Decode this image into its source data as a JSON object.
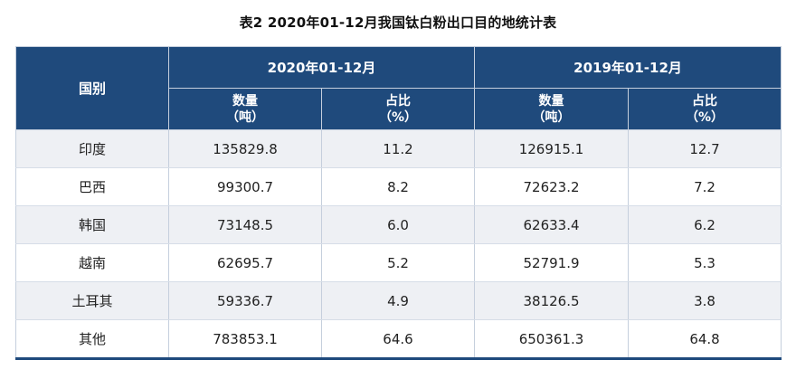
{
  "caption": "表2  2020年01-12月我国钛白粉出口目的地统计表",
  "header": {
    "country": "国别",
    "period_2020": "2020年01-12月",
    "period_2019": "2019年01-12月",
    "qty_label": "数量",
    "qty_unit": "（吨）",
    "share_label": "占比",
    "share_unit": "（%）"
  },
  "rows": [
    {
      "country": "印度",
      "qty_2020": "135829.8",
      "share_2020": "11.2",
      "qty_2019": "126915.1",
      "share_2019": "12.7"
    },
    {
      "country": "巴西",
      "qty_2020": "99300.7",
      "share_2020": "8.2",
      "qty_2019": "72623.2",
      "share_2019": "7.2"
    },
    {
      "country": "韩国",
      "qty_2020": "73148.5",
      "share_2020": "6.0",
      "qty_2019": "62633.4",
      "share_2019": "6.2"
    },
    {
      "country": "越南",
      "qty_2020": "62695.7",
      "share_2020": "5.2",
      "qty_2019": "52791.9",
      "share_2019": "5.3"
    },
    {
      "country": "土耳其",
      "qty_2020": "59336.7",
      "share_2020": "4.9",
      "qty_2019": "38126.5",
      "share_2019": "3.8"
    },
    {
      "country": "其他",
      "qty_2020": "783853.1",
      "share_2020": "64.6",
      "qty_2019": "650361.3",
      "share_2019": "64.8"
    }
  ]
}
